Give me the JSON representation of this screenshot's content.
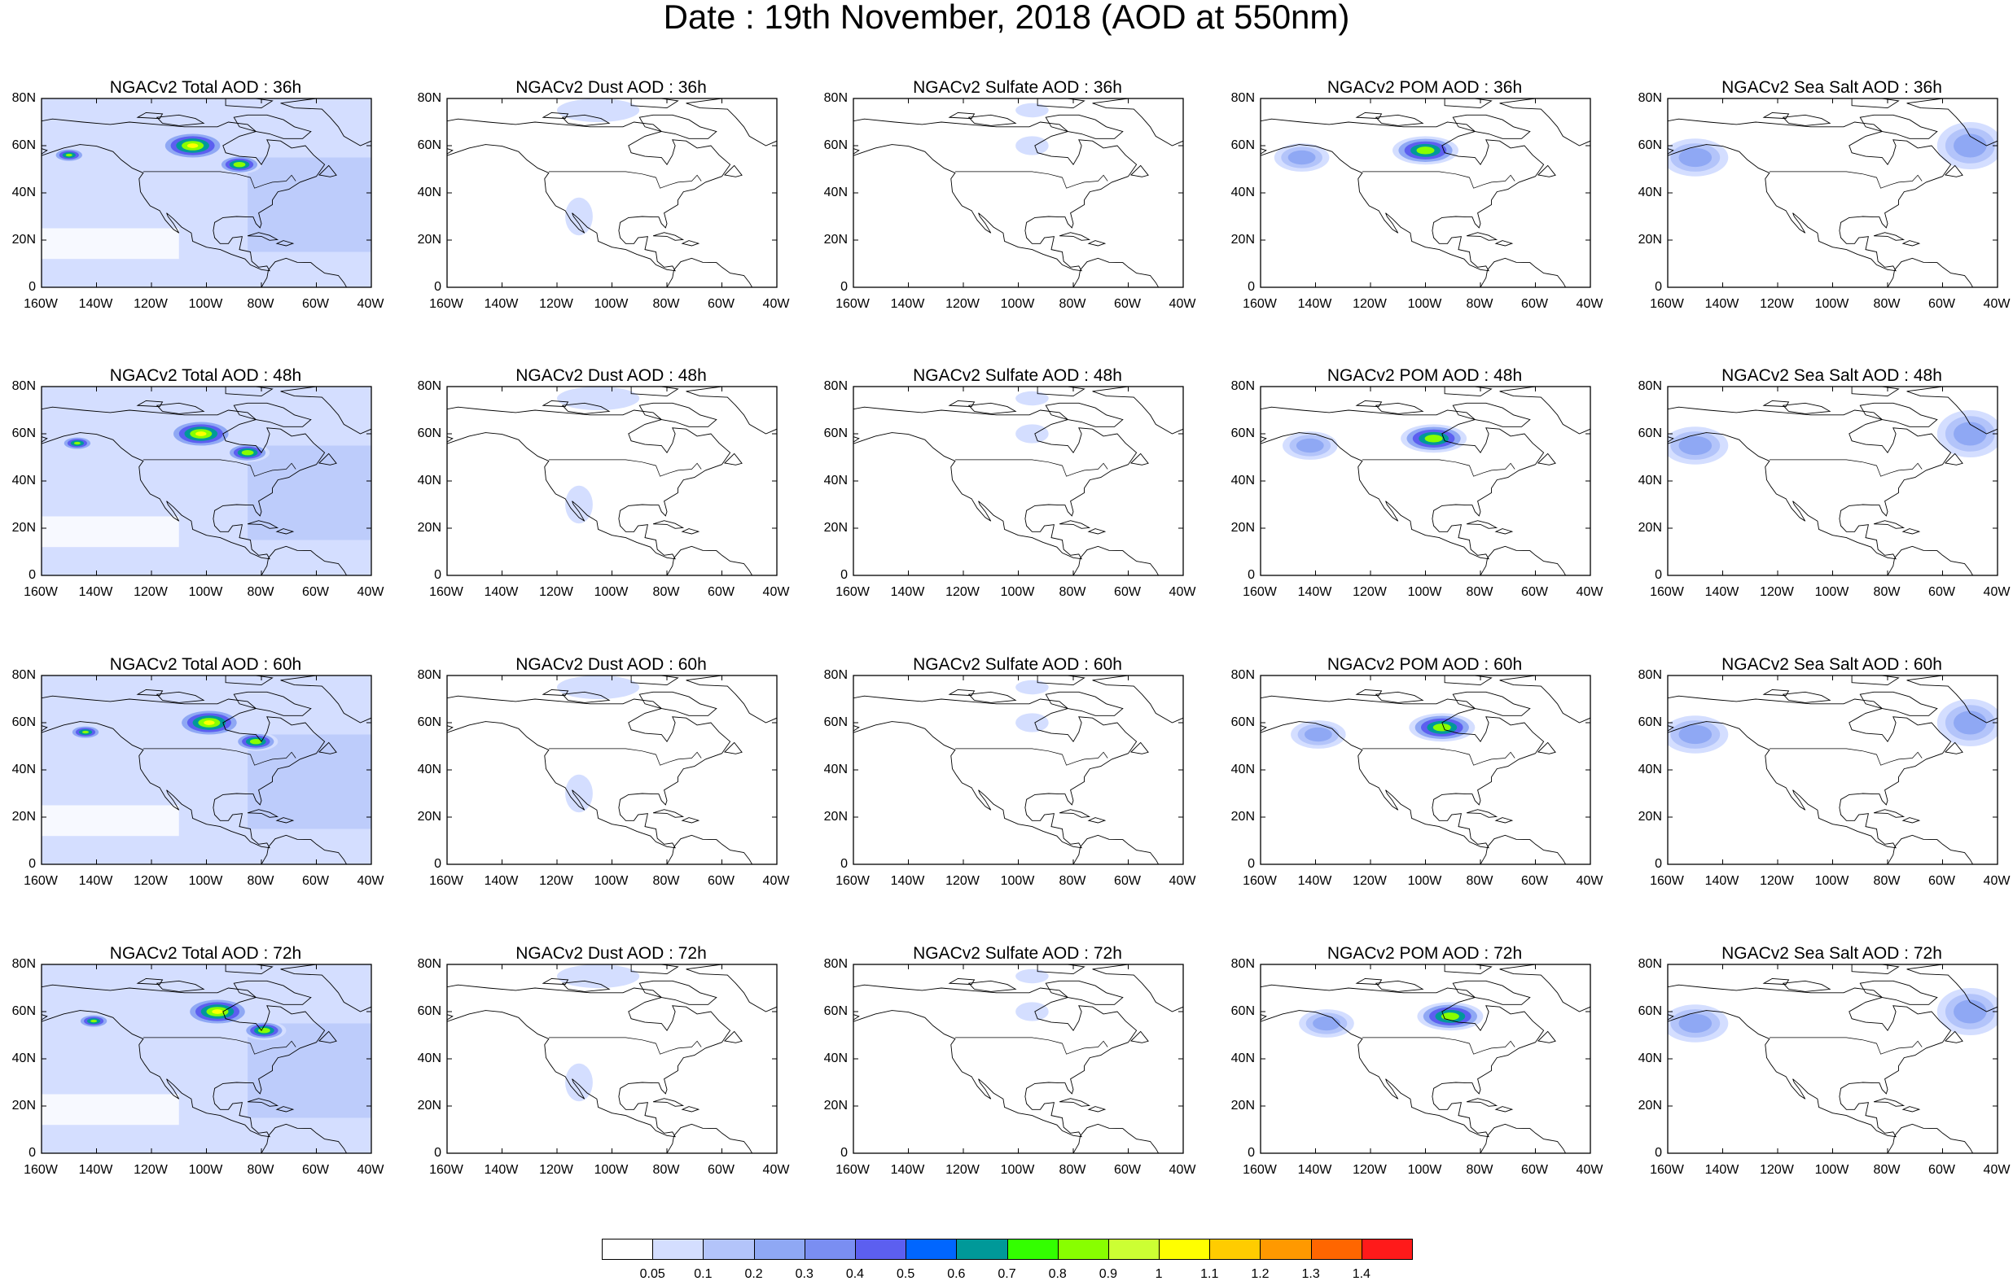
{
  "title": "Date : 19th November, 2018 (AOD at 550nm)",
  "axes": {
    "lat_ticks": [
      "0",
      "20N",
      "40N",
      "60N",
      "80N"
    ],
    "lon_ticks": [
      "160W",
      "140W",
      "120W",
      "100W",
      "80W",
      "60W",
      "40W"
    ],
    "lat_range": [
      0,
      80
    ],
    "lon_range": [
      -160,
      -40
    ]
  },
  "panels": [
    {
      "title": "NGACv2 Total AOD : 36h",
      "species": "total",
      "hour": 36
    },
    {
      "title": "NGACv2 Dust AOD : 36h",
      "species": "dust",
      "hour": 36
    },
    {
      "title": "NGACv2 Sulfate AOD : 36h",
      "species": "sulfate",
      "hour": 36
    },
    {
      "title": "NGACv2 POM AOD : 36h",
      "species": "pom",
      "hour": 36
    },
    {
      "title": "NGACv2 Sea Salt AOD : 36h",
      "species": "seasalt",
      "hour": 36
    },
    {
      "title": "NGACv2 Total AOD : 48h",
      "species": "total",
      "hour": 48
    },
    {
      "title": "NGACv2 Dust AOD : 48h",
      "species": "dust",
      "hour": 48
    },
    {
      "title": "NGACv2 Sulfate AOD : 48h",
      "species": "sulfate",
      "hour": 48
    },
    {
      "title": "NGACv2 POM AOD : 48h",
      "species": "pom",
      "hour": 48
    },
    {
      "title": "NGACv2 Sea Salt AOD : 48h",
      "species": "seasalt",
      "hour": 48
    },
    {
      "title": "NGACv2 Total AOD : 60h",
      "species": "total",
      "hour": 60
    },
    {
      "title": "NGACv2 Dust AOD : 60h",
      "species": "dust",
      "hour": 60
    },
    {
      "title": "NGACv2 Sulfate AOD : 60h",
      "species": "sulfate",
      "hour": 60
    },
    {
      "title": "NGACv2 POM AOD : 60h",
      "species": "pom",
      "hour": 60
    },
    {
      "title": "NGACv2 Sea Salt AOD : 60h",
      "species": "seasalt",
      "hour": 60
    },
    {
      "title": "NGACv2 Total AOD : 72h",
      "species": "total",
      "hour": 72
    },
    {
      "title": "NGACv2 Dust AOD : 72h",
      "species": "dust",
      "hour": 72
    },
    {
      "title": "NGACv2 Sulfate AOD : 72h",
      "species": "sulfate",
      "hour": 72
    },
    {
      "title": "NGACv2 POM AOD : 72h",
      "species": "pom",
      "hour": 72
    },
    {
      "title": "NGACv2 Sea Salt  AOD : 72h",
      "species": "seasalt",
      "hour": 72
    }
  ],
  "colorbar": {
    "colors": [
      "#ffffff",
      "#d4deff",
      "#b3c4fa",
      "#8fa8f4",
      "#7a8ef2",
      "#5c5ff0",
      "#0066ff",
      "#009999",
      "#33ff00",
      "#88ff00",
      "#ccff33",
      "#ffff00",
      "#ffcc00",
      "#ff9900",
      "#ff6600",
      "#ff1a1a"
    ],
    "labels": [
      "0.05",
      "0.1",
      "0.2",
      "0.3",
      "0.4",
      "0.5",
      "0.6",
      "0.7",
      "0.8",
      "0.9",
      "1",
      "1.1",
      "1.2",
      "1.3",
      "1.4"
    ]
  },
  "features": {
    "total": [
      {
        "lon": -105,
        "lat": 60,
        "rx": 12,
        "ry": 6,
        "level": 11
      },
      {
        "lon": -88,
        "lat": 52,
        "rx": 8,
        "ry": 4,
        "level": 10
      },
      {
        "lon": -150,
        "lat": 56,
        "rx": 6,
        "ry": 3,
        "level": 9
      }
    ],
    "dust": [
      {
        "lon": -105,
        "lat": 75,
        "rx": 15,
        "ry": 5,
        "level": 1
      },
      {
        "lon": -112,
        "lat": 30,
        "rx": 5,
        "ry": 8,
        "level": 1
      }
    ],
    "sulfate": [
      {
        "lon": -95,
        "lat": 60,
        "rx": 6,
        "ry": 4,
        "level": 1
      },
      {
        "lon": -95,
        "lat": 75,
        "rx": 6,
        "ry": 3,
        "level": 1
      }
    ],
    "pom": [
      {
        "lon": -100,
        "lat": 58,
        "rx": 12,
        "ry": 6,
        "level": 10
      },
      {
        "lon": -145,
        "lat": 55,
        "rx": 10,
        "ry": 6,
        "level": 3
      }
    ],
    "seasalt": [
      {
        "lon": -150,
        "lat": 55,
        "rx": 12,
        "ry": 8,
        "level": 3
      },
      {
        "lon": -50,
        "lat": 60,
        "rx": 12,
        "ry": 10,
        "level": 3
      }
    ]
  }
}
